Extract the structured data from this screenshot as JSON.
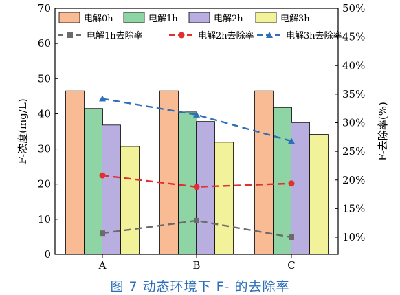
{
  "caption": "图 7   动态环境下 F- 的去除率",
  "chart_data": {
    "type": "bar",
    "categories": [
      "A",
      "B",
      "C"
    ],
    "ylabel": "F-浓度(mg/L)",
    "y2label": "F-去除率(%)",
    "ylim": [
      0,
      70
    ],
    "yticks": [
      "0",
      "10",
      "20",
      "30",
      "40",
      "50",
      "60",
      "70"
    ],
    "y2lim": [
      7,
      50
    ],
    "y2ticks": [
      "10%",
      "15%",
      "20%",
      "25%",
      "30%",
      "35%",
      "40%",
      "45%",
      "50%"
    ],
    "legend_placement": "top",
    "series": [
      {
        "name": "电解0h",
        "values": [
          46.5,
          46.5,
          46.5
        ],
        "color": "#f9bb94"
      },
      {
        "name": "电解1h",
        "values": [
          41.5,
          40.5,
          41.8
        ],
        "color": "#8ed4a5"
      },
      {
        "name": "电解2h",
        "values": [
          36.8,
          37.8,
          37.5
        ],
        "color": "#b8aee0"
      },
      {
        "name": "电解3h",
        "values": [
          30.7,
          31.9,
          34.1
        ],
        "color": "#f2f29a"
      }
    ],
    "lines": [
      {
        "name": "电解1h去除率",
        "values": [
          10.7,
          12.9,
          10.0
        ],
        "color": "#6b6b6b",
        "marker": "square"
      },
      {
        "name": "电解2h去除率",
        "values": [
          20.8,
          18.8,
          19.4
        ],
        "color": "#e03030",
        "marker": "circle"
      },
      {
        "name": "电解3h去除率",
        "values": [
          34.2,
          31.4,
          26.8
        ],
        "color": "#2f6fb8",
        "marker": "triangle"
      }
    ]
  }
}
